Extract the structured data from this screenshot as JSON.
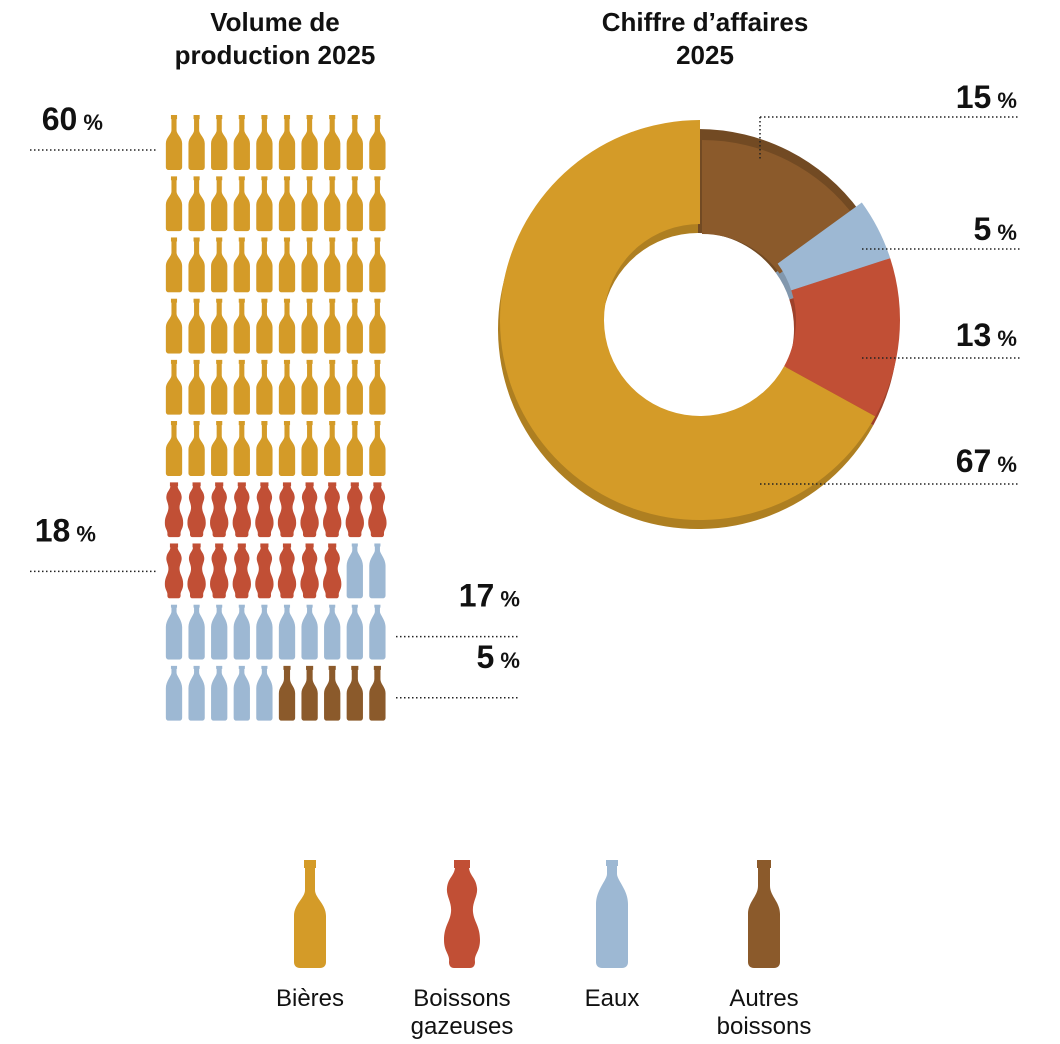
{
  "chart_data": [
    {
      "type": "pictogram",
      "title": "Volume de\nproduction 2025",
      "grid": {
        "rows": 10,
        "cols": 10
      },
      "series": [
        {
          "name": "Bières",
          "value": 60,
          "label": "60",
          "unit": "%",
          "color": "#D49B28",
          "icon": "beer-bottle-icon"
        },
        {
          "name": "Boissons gazeuses",
          "value": 18,
          "label": "18",
          "unit": "%",
          "color": "#C14F35",
          "icon": "soda-bottle-icon"
        },
        {
          "name": "Eaux",
          "value": 17,
          "label": "17",
          "unit": "%",
          "color": "#9DB8D3",
          "icon": "water-bottle-icon"
        },
        {
          "name": "Autres boissons",
          "value": 5,
          "label": "5",
          "unit": "%",
          "color": "#8B5A2B",
          "icon": "other-bottle-icon"
        }
      ]
    },
    {
      "type": "donut",
      "title": "Chiffre d’affaires\n2025",
      "series": [
        {
          "name": "Autres boissons",
          "value": 15,
          "label": "15",
          "unit": "%",
          "color": "#8B5A2B"
        },
        {
          "name": "Eaux",
          "value": 5,
          "label": "5",
          "unit": "%",
          "color": "#9DB8D3"
        },
        {
          "name": "Boissons gazeuses",
          "value": 13,
          "label": "13",
          "unit": "%",
          "color": "#C14F35"
        },
        {
          "name": "Bières",
          "value": 67,
          "label": "67",
          "unit": "%",
          "color": "#D49B28"
        }
      ]
    }
  ],
  "legend": [
    {
      "label": "Bières",
      "color": "#D49B28",
      "icon": "beer-bottle-icon"
    },
    {
      "label": "Boissons\ngazeuses",
      "color": "#C14F35",
      "icon": "soda-bottle-icon"
    },
    {
      "label": "Eaux",
      "color": "#9DB8D3",
      "icon": "water-bottle-icon"
    },
    {
      "label": "Autres\nboissons",
      "color": "#8B5A2B",
      "icon": "other-bottle-icon"
    }
  ]
}
